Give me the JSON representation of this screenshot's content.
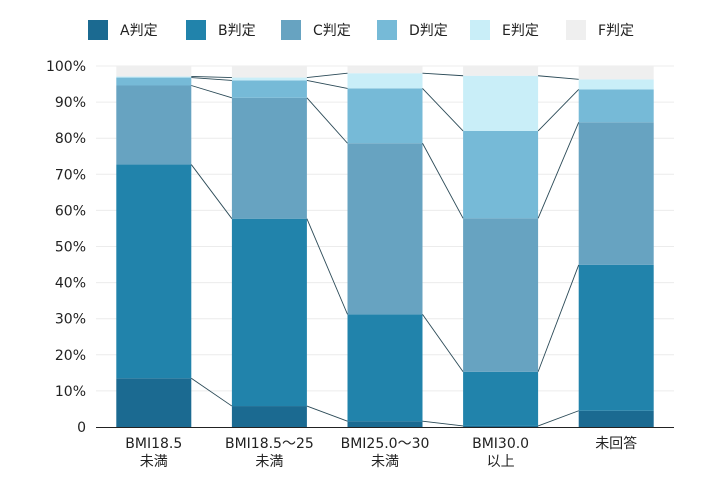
{
  "chart_data": {
    "type": "bar",
    "stacked": true,
    "categories": [
      [
        "BMI18.5",
        "未満"
      ],
      [
        "BMI18.5～25",
        "未満"
      ],
      [
        "BMI25.0～30",
        "未満"
      ],
      [
        "BMI30.0",
        "以上"
      ],
      [
        "未回答"
      ]
    ],
    "series": [
      {
        "name": "A判定",
        "color": "#1b6a91",
        "values": [
          13.5,
          5.8,
          1.6,
          0.3,
          4.5
        ]
      },
      {
        "name": "B判定",
        "color": "#2183ab",
        "values": [
          59.2,
          51.9,
          29.6,
          15.0,
          40.4
        ]
      },
      {
        "name": "C判定",
        "color": "#67a3c1",
        "values": [
          21.9,
          33.5,
          47.4,
          42.5,
          39.5
        ]
      },
      {
        "name": "D判定",
        "color": "#76bad7",
        "values": [
          2.2,
          4.8,
          15.2,
          24.2,
          9.1
        ]
      },
      {
        "name": "E判定",
        "color": "#c9eef8",
        "values": [
          0.3,
          0.8,
          4.2,
          15.3,
          2.8
        ]
      },
      {
        "name": "F判定",
        "color": "#efefef",
        "values": [
          2.9,
          3.2,
          1.9,
          2.7,
          3.7
        ]
      }
    ],
    "ylim": [
      0,
      100
    ],
    "yticks": [
      "0",
      "10%",
      "20%",
      "30%",
      "40%",
      "50%",
      "60%",
      "70%",
      "80%",
      "90%",
      "100%"
    ],
    "legend_position": "top",
    "connector_lines": true,
    "grid": true
  }
}
